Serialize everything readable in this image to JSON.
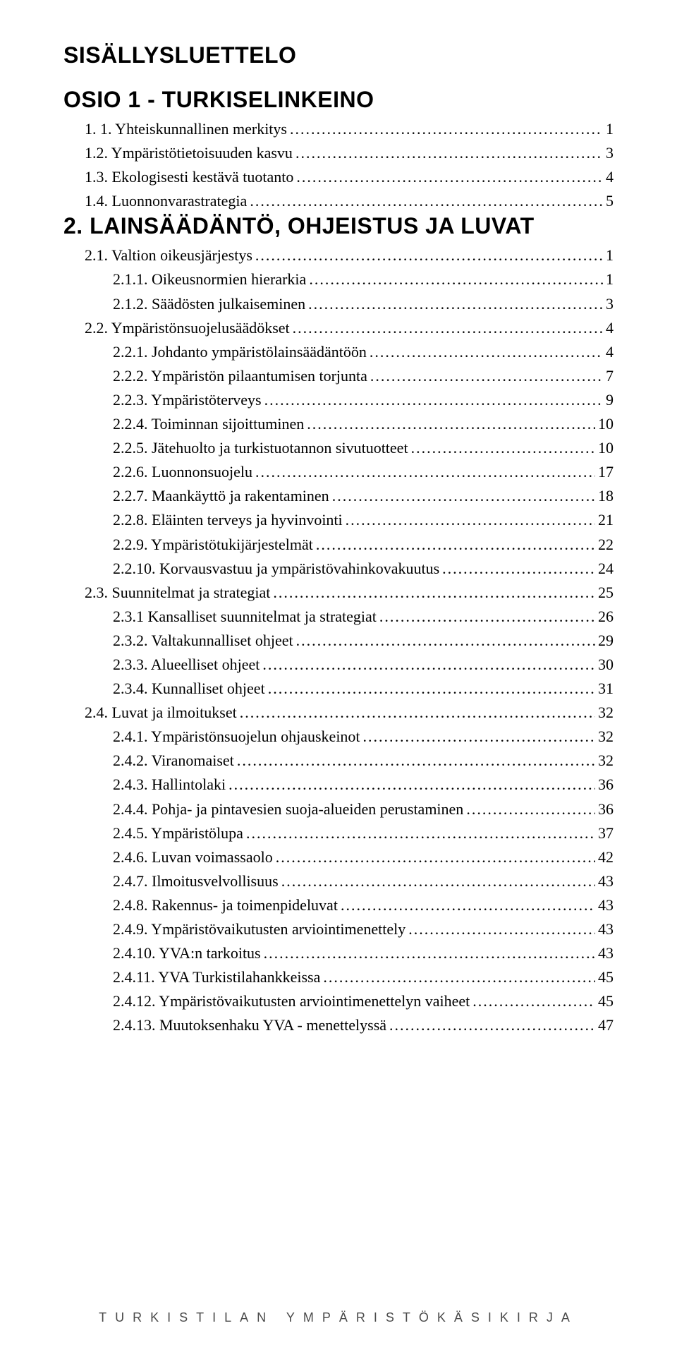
{
  "title": "SISÄLLYSLUETTELO",
  "sections": [
    {
      "heading": "OSIO 1 - TURKISELINKEINO",
      "entries": [
        {
          "level": 1,
          "label": "1. 1. Yhteiskunnallinen merkitys",
          "page": "1"
        },
        {
          "level": 1,
          "label": "1.2. Ympäristötietoisuuden kasvu",
          "page": "3"
        },
        {
          "level": 1,
          "label": "1.3. Ekologisesti kestävä tuotanto",
          "page": "4"
        },
        {
          "level": 1,
          "label": "1.4. Luonnonvarastrategia",
          "page": "5"
        }
      ]
    },
    {
      "heading": "2. LAINSÄÄDÄNTÖ, OHJEISTUS JA LUVAT",
      "entries": [
        {
          "level": 1,
          "label": "2.1. Valtion oikeusjärjestys",
          "page": "1"
        },
        {
          "level": 2,
          "label": "2.1.1. Oikeusnormien hierarkia",
          "page": "1"
        },
        {
          "level": 2,
          "label": "2.1.2. Säädösten julkaiseminen",
          "page": "3"
        },
        {
          "level": 1,
          "label": "2.2. Ympäristönsuojelusäädökset",
          "page": "4"
        },
        {
          "level": 2,
          "label": "2.2.1. Johdanto ympäristölainsäädäntöön",
          "page": "4"
        },
        {
          "level": 2,
          "label": "2.2.2. Ympäristön pilaantumisen torjunta",
          "page": "7"
        },
        {
          "level": 2,
          "label": "2.2.3. Ympäristöterveys",
          "page": "9"
        },
        {
          "level": 2,
          "label": "2.2.4. Toiminnan sijoittuminen",
          "page": "10"
        },
        {
          "level": 2,
          "label": "2.2.5. Jätehuolto ja turkistuotannon sivutuotteet",
          "page": "10"
        },
        {
          "level": 2,
          "label": "2.2.6. Luonnonsuojelu",
          "page": "17"
        },
        {
          "level": 2,
          "label": "2.2.7. Maankäyttö ja rakentaminen",
          "page": "18"
        },
        {
          "level": 2,
          "label": "2.2.8. Eläinten terveys ja hyvinvointi",
          "page": "21"
        },
        {
          "level": 2,
          "label": "2.2.9. Ympäristötukijärjestelmät",
          "page": "22"
        },
        {
          "level": 2,
          "label": "2.2.10. Korvausvastuu ja ympäristövahinkovakuutus",
          "page": "24"
        },
        {
          "level": 1,
          "label": "2.3. Suunnitelmat ja strategiat",
          "page": "25"
        },
        {
          "level": 2,
          "label": "2.3.1 Kansalliset suunnitelmat ja strategiat",
          "page": "26"
        },
        {
          "level": 2,
          "label": "2.3.2. Valtakunnalliset ohjeet",
          "page": "29"
        },
        {
          "level": 2,
          "label": "2.3.3. Alueelliset ohjeet",
          "page": "30"
        },
        {
          "level": 2,
          "label": "2.3.4. Kunnalliset ohjeet",
          "page": "31"
        },
        {
          "level": 1,
          "label": "2.4. Luvat ja ilmoitukset",
          "page": "32"
        },
        {
          "level": 2,
          "label": "2.4.1. Ympäristönsuojelun ohjauskeinot",
          "page": "32"
        },
        {
          "level": 2,
          "label": "2.4.2. Viranomaiset",
          "page": "32"
        },
        {
          "level": 2,
          "label": "2.4.3. Hallintolaki",
          "page": "36"
        },
        {
          "level": 2,
          "label": "2.4.4. Pohja- ja pintavesien suoja-alueiden perustaminen",
          "page": "36"
        },
        {
          "level": 2,
          "label": "2.4.5. Ympäristölupa",
          "page": "37"
        },
        {
          "level": 2,
          "label": "2.4.6. Luvan voimassaolo",
          "page": "42"
        },
        {
          "level": 2,
          "label": "2.4.7. Ilmoitusvelvollisuus",
          "page": "43"
        },
        {
          "level": 2,
          "label": "2.4.8. Rakennus- ja toimenpideluvat",
          "page": "43"
        },
        {
          "level": 2,
          "label": "2.4.9. Ympäristövaikutusten arviointimenettely",
          "page": "43"
        },
        {
          "level": 2,
          "label": "2.4.10. YVA:n tarkoitus",
          "page": "43"
        },
        {
          "level": 2,
          "label": "2.4.11. YVA Turkistilahankkeissa",
          "page": "45"
        },
        {
          "level": 2,
          "label": "2.4.12. Ympäristövaikutusten arviointimenettelyn vaiheet",
          "page": "45"
        },
        {
          "level": 2,
          "label": "2.4.13. Muutoksenhaku YVA - menettelyssä",
          "page": "47"
        }
      ]
    }
  ],
  "footer": "TURKISTILAN YMPÄRISTÖKÄSIKIRJA"
}
